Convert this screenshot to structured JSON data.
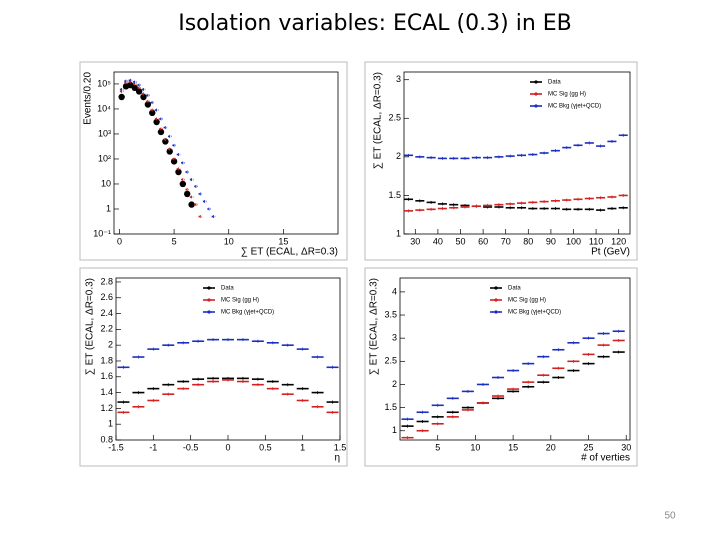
{
  "slide": {
    "title": "Isolation variables:  ECAL (0.3) in EB",
    "page_number": "50"
  },
  "chart_data": [
    {
      "type": "scatter",
      "ylabel": "Events/0.20",
      "xlabel": "∑ ET (ECAL, ΔR=0.3)",
      "log_y": true,
      "xlim": [
        -0.5,
        20
      ],
      "ylim": [
        0.1,
        300000
      ],
      "xticks": [
        0,
        5,
        10,
        15
      ],
      "yticks": [
        {
          "value": 0.1,
          "label": "10⁻¹"
        },
        1,
        10,
        {
          "value": 100,
          "label": "10²"
        },
        {
          "value": 1000,
          "label": "10³"
        },
        {
          "value": 10000,
          "label": "10⁴"
        },
        {
          "value": 100000,
          "label": "10⁵"
        }
      ],
      "legend": false,
      "series": [
        {
          "name": "Data",
          "color": "#000000",
          "marker": "circle",
          "x": [
            0.2,
            0.6,
            1.0,
            1.4,
            1.8,
            2.2,
            2.6,
            3.0,
            3.4,
            3.8,
            4.2,
            4.6,
            5.0,
            5.4,
            5.8,
            6.2,
            6.6
          ],
          "values": [
            30000,
            80000,
            90000,
            70000,
            50000,
            30000,
            15000,
            7000,
            3000,
            1200,
            500,
            200,
            80,
            30,
            10,
            4,
            1.5
          ]
        },
        {
          "name": "MC Sig (gg H)",
          "color": "#d42020",
          "marker": "dash",
          "linestyle": "dashed",
          "x": [
            0.2,
            0.6,
            1.0,
            1.4,
            1.8,
            2.2,
            2.6,
            3.0,
            3.4,
            3.8,
            4.2,
            4.6,
            5.0,
            5.4,
            5.8,
            6.2,
            6.6,
            7.0,
            7.4
          ],
          "values": [
            50000,
            110000,
            120000,
            100000,
            70000,
            40000,
            20000,
            9000,
            4000,
            1600,
            600,
            250,
            100,
            40,
            15,
            6,
            3,
            1.5,
            0.5
          ]
        },
        {
          "name": "MC Bkg (γjet+QCD)",
          "color": "#1a2fc0",
          "marker": "dash",
          "linestyle": "dashed",
          "x": [
            0.2,
            0.6,
            1.0,
            1.4,
            1.8,
            2.2,
            2.6,
            3.0,
            3.4,
            3.8,
            4.2,
            4.6,
            5.0,
            5.4,
            5.8,
            6.2,
            6.6,
            7.0,
            7.4,
            7.8,
            8.2,
            8.6
          ],
          "values": [
            60000,
            130000,
            140000,
            120000,
            90000,
            60000,
            35000,
            18000,
            9000,
            4000,
            1800,
            800,
            350,
            150,
            70,
            30,
            15,
            8,
            4,
            2,
            1,
            0.5
          ]
        }
      ]
    },
    {
      "type": "scatter",
      "ylabel": "∑ ET (ECAL, ΔR=0.3)",
      "xlabel": "Pt (GeV)",
      "xlim": [
        25,
        125
      ],
      "ylim": [
        1,
        3.1
      ],
      "xticks": [
        30,
        40,
        50,
        60,
        70,
        80,
        90,
        100,
        110,
        120
      ],
      "yticks": [
        1,
        1.5,
        2,
        2.5,
        3
      ],
      "legend": "upper right",
      "series": [
        {
          "name": "Data",
          "color": "#000000",
          "marker": "dash",
          "x": [
            27,
            32,
            37,
            42,
            47,
            52,
            57,
            62,
            67,
            72,
            77,
            82,
            87,
            92,
            97,
            102,
            107,
            112,
            117,
            122
          ],
          "values": [
            1.45,
            1.43,
            1.41,
            1.39,
            1.38,
            1.37,
            1.36,
            1.35,
            1.35,
            1.34,
            1.34,
            1.33,
            1.33,
            1.33,
            1.32,
            1.32,
            1.32,
            1.31,
            1.33,
            1.34
          ]
        },
        {
          "name": "MC Sig (gg H)",
          "color": "#d42020",
          "marker": "dash",
          "x": [
            27,
            32,
            37,
            42,
            47,
            52,
            57,
            62,
            67,
            72,
            77,
            82,
            87,
            92,
            97,
            102,
            107,
            112,
            117,
            122
          ],
          "values": [
            1.3,
            1.31,
            1.32,
            1.33,
            1.34,
            1.35,
            1.36,
            1.37,
            1.38,
            1.39,
            1.4,
            1.41,
            1.42,
            1.43,
            1.44,
            1.45,
            1.46,
            1.47,
            1.48,
            1.5
          ]
        },
        {
          "name": "MC Bkg (γjet+QCD)",
          "color": "#1a2fc0",
          "marker": "dash",
          "x": [
            27,
            32,
            37,
            42,
            47,
            52,
            57,
            62,
            67,
            72,
            77,
            82,
            87,
            92,
            97,
            102,
            107,
            112,
            117,
            122
          ],
          "values": [
            2.02,
            2.0,
            1.99,
            1.98,
            1.98,
            1.98,
            1.99,
            1.99,
            2.0,
            2.01,
            2.02,
            2.03,
            2.05,
            2.08,
            2.12,
            2.15,
            2.18,
            2.14,
            2.2,
            2.28
          ]
        }
      ]
    },
    {
      "type": "scatter",
      "ylabel": "∑ ET (ECAL, ΔR=0.3)",
      "xlabel": "η",
      "xlim": [
        -1.5,
        1.5
      ],
      "ylim": [
        0.8,
        2.85
      ],
      "xticks": [
        -1.5,
        -1,
        -0.5,
        0,
        0.5,
        1,
        1.5
      ],
      "yticks": [
        0.8,
        1,
        1.2,
        1.4,
        1.6,
        1.8,
        2,
        2.2,
        2.4,
        2.6,
        2.8
      ],
      "legend": "upper center",
      "series": [
        {
          "name": "Data",
          "color": "#000000",
          "marker": "dash",
          "x": [
            -1.4,
            -1.2,
            -1.0,
            -0.8,
            -0.6,
            -0.4,
            -0.2,
            0,
            0.2,
            0.4,
            0.6,
            0.8,
            1.0,
            1.2,
            1.4
          ],
          "values": [
            1.28,
            1.4,
            1.45,
            1.5,
            1.54,
            1.57,
            1.58,
            1.58,
            1.58,
            1.57,
            1.54,
            1.5,
            1.45,
            1.4,
            1.28
          ]
        },
        {
          "name": "MC Sig (gg H)",
          "color": "#d42020",
          "marker": "dash",
          "x": [
            -1.4,
            -1.2,
            -1.0,
            -0.8,
            -0.6,
            -0.4,
            -0.2,
            0,
            0.2,
            0.4,
            0.6,
            0.8,
            1.0,
            1.2,
            1.4
          ],
          "values": [
            1.15,
            1.22,
            1.3,
            1.38,
            1.45,
            1.5,
            1.54,
            1.56,
            1.54,
            1.5,
            1.45,
            1.38,
            1.3,
            1.22,
            1.15
          ]
        },
        {
          "name": "MC Bkg (γjet+QCD)",
          "color": "#1a2fc0",
          "marker": "dash",
          "x": [
            -1.4,
            -1.2,
            -1.0,
            -0.8,
            -0.6,
            -0.4,
            -0.2,
            0,
            0.2,
            0.4,
            0.6,
            0.8,
            1.0,
            1.2,
            1.4
          ],
          "values": [
            1.72,
            1.85,
            1.95,
            2.0,
            2.03,
            2.05,
            2.07,
            2.07,
            2.07,
            2.05,
            2.03,
            2.0,
            1.95,
            1.85,
            1.72
          ]
        }
      ]
    },
    {
      "type": "scatter",
      "ylabel": "∑ ET (ECAL, ΔR=0.3)",
      "xlabel": "# of verties",
      "xlim": [
        0,
        30.5
      ],
      "ylim": [
        0.8,
        4.3
      ],
      "xticks": [
        5,
        10,
        15,
        20,
        25,
        30
      ],
      "yticks": [
        1,
        1.5,
        2,
        2.5,
        3,
        3.5,
        4
      ],
      "legend": "upper center",
      "series": [
        {
          "name": "Data",
          "color": "#000000",
          "marker": "dash",
          "x": [
            1,
            3,
            5,
            7,
            9,
            11,
            13,
            15,
            17,
            19,
            21,
            23,
            25,
            27,
            29
          ],
          "values": [
            1.1,
            1.2,
            1.3,
            1.4,
            1.5,
            1.6,
            1.7,
            1.85,
            1.95,
            2.05,
            2.15,
            2.3,
            2.45,
            2.6,
            2.7
          ]
        },
        {
          "name": "MC Sig (gg H)",
          "color": "#d42020",
          "marker": "dash",
          "x": [
            1,
            3,
            5,
            7,
            9,
            11,
            13,
            15,
            17,
            19,
            21,
            23,
            25,
            27,
            29
          ],
          "values": [
            0.85,
            1.0,
            1.15,
            1.3,
            1.45,
            1.6,
            1.75,
            1.9,
            2.05,
            2.2,
            2.35,
            2.5,
            2.65,
            2.85,
            2.95
          ]
        },
        {
          "name": "MC Bkg (γjet+QCD)",
          "color": "#1a2fc0",
          "marker": "dash",
          "x": [
            1,
            3,
            5,
            7,
            9,
            11,
            13,
            15,
            17,
            19,
            21,
            23,
            25,
            27,
            29
          ],
          "values": [
            1.25,
            1.4,
            1.55,
            1.7,
            1.85,
            2.0,
            2.15,
            2.3,
            2.45,
            2.6,
            2.75,
            2.9,
            3.0,
            3.1,
            3.15
          ]
        }
      ]
    }
  ]
}
